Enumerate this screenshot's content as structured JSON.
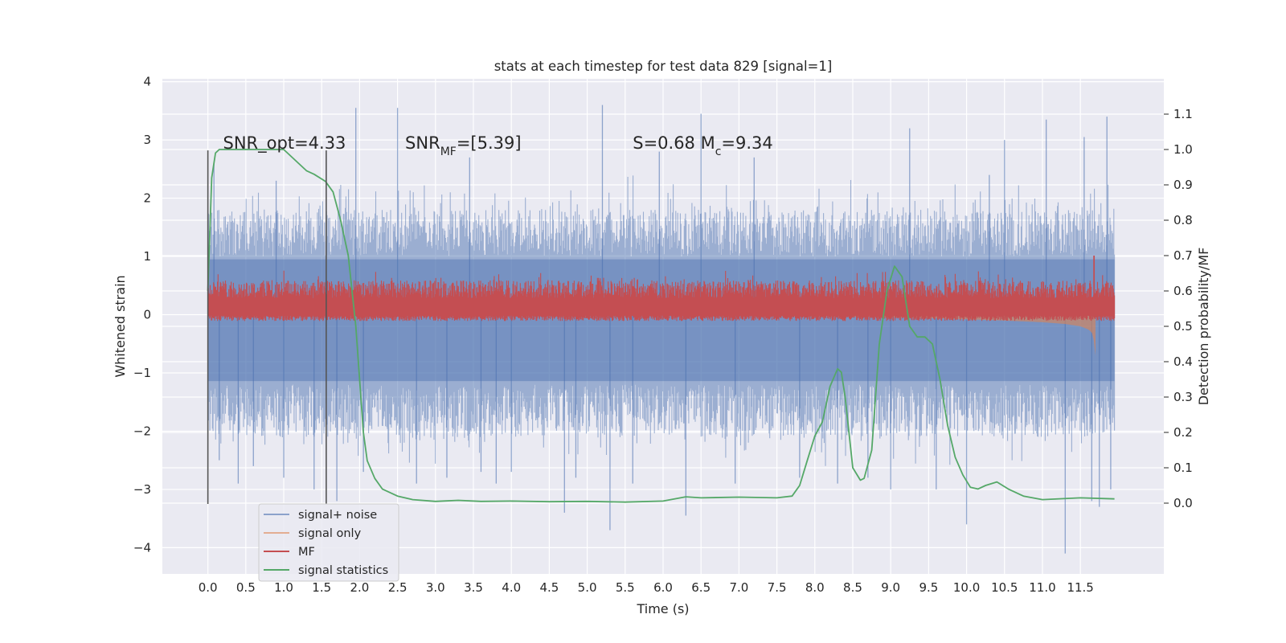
{
  "chart_data": {
    "type": "line",
    "title": "stats at each timestep for test data 829 [signal=1]",
    "xlabel": "Time (s)",
    "ylabel": "Whitened strain",
    "y2label": "Detection probability/MF",
    "xlim": [
      -0.6,
      12.6
    ],
    "ylim": [
      -4.45,
      4.05
    ],
    "y2lim": [
      -0.2,
      1.2
    ],
    "x_ticks": [
      0.0,
      0.5,
      1.0,
      1.5,
      2.0,
      2.5,
      3.0,
      3.5,
      4.0,
      4.5,
      5.0,
      5.5,
      6.0,
      6.5,
      7.0,
      7.5,
      8.0,
      8.5,
      9.0,
      9.5,
      10.0,
      10.5,
      11.0,
      11.5
    ],
    "x_tick_labels": [
      "0.0",
      "0.5",
      "1.0",
      "1.5",
      "2.0",
      "2.5",
      "3.0",
      "3.5",
      "4.0",
      "4.5",
      "5.0",
      "5.5",
      "6.0",
      "6.5",
      "7.0",
      "7.5",
      "8.0",
      "8.5",
      "9.0",
      "9.5",
      "10.0",
      "10.5",
      "11.0",
      "11.5"
    ],
    "y_ticks": [
      -4,
      -3,
      -2,
      -1,
      0,
      1,
      2,
      3,
      4
    ],
    "y_tick_labels": [
      "−4",
      "−3",
      "−2",
      "−1",
      "0",
      "1",
      "2",
      "3",
      "4"
    ],
    "y2_ticks": [
      0.0,
      0.1,
      0.2,
      0.3,
      0.4,
      0.5,
      0.6,
      0.7,
      0.8,
      0.9,
      1.0,
      1.1
    ],
    "y2_tick_labels": [
      "0.0",
      "0.1",
      "0.2",
      "0.3",
      "0.4",
      "0.5",
      "0.6",
      "0.7",
      "0.8",
      "0.9",
      "1.0",
      "1.1"
    ],
    "grid": true,
    "legend_position": "lower-left",
    "annotations": [
      {
        "text": "SNR_opt=4.33",
        "x": 0.2,
        "y": 2.85
      },
      {
        "text": "SNR_MF=[5.39]",
        "x": 2.6,
        "y": 2.85
      },
      {
        "text": "S=0.68   M_c=9.34",
        "x": 5.6,
        "y": 2.85
      }
    ],
    "vlines": [
      {
        "x": 0.0,
        "y_range": [
          -3.25,
          2.82
        ]
      },
      {
        "x": 1.56,
        "y_range": [
          -3.25,
          2.82
        ]
      }
    ],
    "series": [
      {
        "name": "signal+ noise",
        "color": "#4c72b0",
        "alpha": 0.5,
        "style": "dense-noise",
        "x_range": [
          0.0,
          11.95
        ],
        "band_upper": [
          1.0,
          1.8
        ],
        "band_lower": [
          -1.2,
          -2.1
        ],
        "spikes": [
          [
            0.08,
            2.6
          ],
          [
            0.15,
            -2.5
          ],
          [
            0.4,
            -2.9
          ],
          [
            0.6,
            -2.6
          ],
          [
            0.9,
            2.3
          ],
          [
            1.0,
            -2.8
          ],
          [
            1.4,
            -3.0
          ],
          [
            1.7,
            -3.2
          ],
          [
            1.95,
            3.55
          ],
          [
            2.05,
            -2.7
          ],
          [
            2.5,
            3.55
          ],
          [
            2.75,
            -2.9
          ],
          [
            3.15,
            -2.8
          ],
          [
            3.45,
            2.7
          ],
          [
            3.6,
            -2.7
          ],
          [
            3.8,
            -2.9
          ],
          [
            4.0,
            -2.7
          ],
          [
            4.7,
            -3.4
          ],
          [
            4.85,
            -2.8
          ],
          [
            5.2,
            3.6
          ],
          [
            5.3,
            -3.7
          ],
          [
            5.6,
            -2.9
          ],
          [
            5.95,
            2.8
          ],
          [
            6.3,
            -3.45
          ],
          [
            6.5,
            3.45
          ],
          [
            6.95,
            -2.9
          ],
          [
            7.2,
            2.7
          ],
          [
            7.8,
            -2.8
          ],
          [
            8.3,
            -2.9
          ],
          [
            8.7,
            -2.8
          ],
          [
            9.0,
            -3.0
          ],
          [
            9.25,
            3.2
          ],
          [
            9.6,
            -3.0
          ],
          [
            10.0,
            -3.6
          ],
          [
            10.3,
            2.4
          ],
          [
            10.5,
            3.0
          ],
          [
            11.05,
            3.35
          ],
          [
            11.3,
            -4.1
          ],
          [
            11.55,
            3.05
          ],
          [
            11.65,
            -3.2
          ],
          [
            11.75,
            -3.3
          ],
          [
            11.85,
            3.4
          ],
          [
            11.9,
            -3.0
          ]
        ]
      },
      {
        "name": "signal only",
        "color": "#dd8452",
        "alpha": 0.6,
        "x": [
          0.0,
          2.0,
          4.0,
          6.0,
          7.0,
          8.0,
          8.5,
          9.0,
          9.5,
          10.0,
          10.5,
          11.0,
          11.3,
          11.5,
          11.6,
          11.65,
          11.68,
          11.7
        ],
        "envelope": [
          0.01,
          0.01,
          0.01,
          0.015,
          0.02,
          0.03,
          0.035,
          0.045,
          0.06,
          0.08,
          0.1,
          0.13,
          0.16,
          0.2,
          0.25,
          0.3,
          0.45,
          0.7
        ]
      },
      {
        "name": "MF",
        "color": "#c44e52",
        "alpha": 1.0,
        "style": "dense-noise",
        "x_range": [
          0.0,
          11.95
        ],
        "mean_y2": 0.58,
        "jitter_y2": 0.05,
        "spike_points": [
          [
            11.68,
            0.7
          ]
        ]
      },
      {
        "name": "signal statistics",
        "color": "#55a868",
        "alpha": 1.0,
        "x": [
          0.0,
          0.05,
          0.1,
          0.15,
          0.25,
          0.5,
          1.0,
          1.2,
          1.3,
          1.4,
          1.55,
          1.65,
          1.75,
          1.85,
          1.95,
          2.0,
          2.05,
          2.1,
          2.2,
          2.3,
          2.5,
          2.7,
          3.0,
          3.3,
          3.6,
          4.0,
          4.5,
          5.0,
          5.5,
          6.0,
          6.3,
          6.5,
          7.0,
          7.5,
          7.7,
          7.8,
          7.9,
          8.0,
          8.1,
          8.2,
          8.3,
          8.35,
          8.4,
          8.5,
          8.6,
          8.65,
          8.75,
          8.85,
          8.95,
          9.05,
          9.15,
          9.25,
          9.35,
          9.45,
          9.55,
          9.65,
          9.75,
          9.85,
          9.95,
          10.05,
          10.15,
          10.25,
          10.4,
          10.55,
          10.75,
          11.0,
          11.5,
          11.95
        ],
        "y2": [
          0.6,
          0.92,
          0.99,
          1.0,
          1.0,
          1.0,
          1.0,
          0.96,
          0.94,
          0.93,
          0.91,
          0.88,
          0.8,
          0.7,
          0.5,
          0.35,
          0.2,
          0.12,
          0.07,
          0.04,
          0.02,
          0.01,
          0.005,
          0.008,
          0.005,
          0.006,
          0.004,
          0.005,
          0.003,
          0.006,
          0.018,
          0.015,
          0.017,
          0.015,
          0.02,
          0.05,
          0.12,
          0.19,
          0.23,
          0.33,
          0.38,
          0.37,
          0.3,
          0.1,
          0.065,
          0.07,
          0.15,
          0.45,
          0.6,
          0.67,
          0.64,
          0.5,
          0.47,
          0.47,
          0.45,
          0.35,
          0.22,
          0.13,
          0.08,
          0.045,
          0.04,
          0.05,
          0.06,
          0.04,
          0.02,
          0.01,
          0.015,
          0.012
        ]
      }
    ]
  }
}
